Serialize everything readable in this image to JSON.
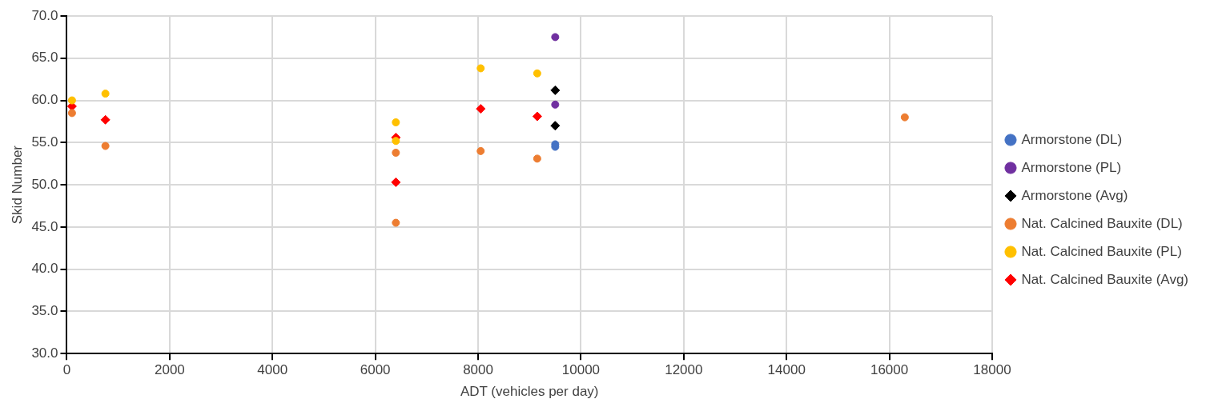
{
  "chart_data": {
    "type": "scatter",
    "xlabel": "ADT (vehicles per day)",
    "ylabel": "Skid Number",
    "xlim": [
      0,
      18000
    ],
    "xticks": [
      0,
      2000,
      4000,
      6000,
      8000,
      10000,
      12000,
      14000,
      16000,
      18000
    ],
    "ylim": [
      30,
      70
    ],
    "yticks": [
      {
        "value": 30,
        "label": "30.0"
      },
      {
        "value": 35,
        "label": "35.0"
      },
      {
        "value": 40,
        "label": "40.0"
      },
      {
        "value": 45,
        "label": "45.0"
      },
      {
        "value": 50,
        "label": "50.0"
      },
      {
        "value": 55,
        "label": "55.0"
      },
      {
        "value": 60,
        "label": "60.0"
      },
      {
        "value": 65,
        "label": "65.0"
      },
      {
        "value": 70,
        "label": "70.0"
      }
    ],
    "grid": true,
    "legend": "right",
    "series": [
      {
        "name": "Armorstone (DL)",
        "color": "#4472c4",
        "marker": "circle",
        "x": [
          9500,
          9500
        ],
        "values": [
          54.8,
          54.5
        ]
      },
      {
        "name": "Armorstone (PL)",
        "color": "#7030a0",
        "marker": "circle",
        "x": [
          9500,
          9500
        ],
        "values": [
          67.5,
          59.5
        ]
      },
      {
        "name": "Armorstone (Avg)",
        "color": "#000000",
        "marker": "diamond",
        "x": [
          9500,
          9500
        ],
        "values": [
          61.2,
          57.0
        ]
      },
      {
        "name": "Nat. Calcined Bauxite (DL)",
        "color": "#ed7d31",
        "marker": "circle",
        "x": [
          100,
          750,
          6400,
          6400,
          8050,
          9150,
          16300
        ],
        "values": [
          58.5,
          54.6,
          53.8,
          45.5,
          54.0,
          53.1,
          58.0
        ]
      },
      {
        "name": "Nat. Calcined Bauxite (PL)",
        "color": "#ffc000",
        "marker": "circle",
        "x": [
          100,
          750,
          6400,
          6400,
          8050,
          9150
        ],
        "values": [
          60.0,
          60.8,
          57.4,
          55.2,
          63.8,
          63.2
        ]
      },
      {
        "name": "Nat. Calcined Bauxite (Avg)",
        "color": "#ff0000",
        "marker": "diamond",
        "x": [
          100,
          750,
          6400,
          6400,
          8050,
          9150
        ],
        "values": [
          59.3,
          57.7,
          55.6,
          50.3,
          59.0,
          58.1
        ]
      }
    ]
  }
}
